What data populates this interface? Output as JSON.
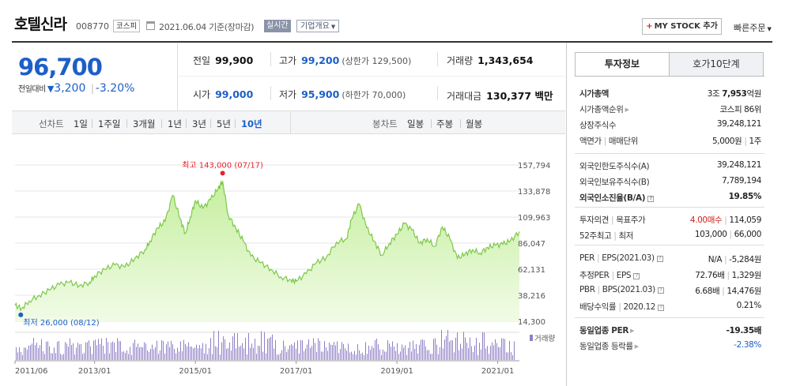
{
  "header": {
    "name": "호텔신라",
    "code": "008770",
    "market": "코스피",
    "date_text": "2021.06.04 기준(장마감)",
    "realtime": "실시간",
    "company_info": "기업개요",
    "mystock_plus": "+",
    "mystock_label": "MY STOCK 추가",
    "quick_order": "빠른주문"
  },
  "price": {
    "current": "96,700",
    "change_label": "전일대비",
    "change_arrow": "▼",
    "change": "3,200",
    "sep": "|",
    "change_pct": "-3.20%"
  },
  "quote": {
    "prev_close_label": "전일",
    "prev_close": "99,900",
    "high_label": "고가",
    "high": "99,200",
    "upper_limit": "(상한가 129,500)",
    "volume_label": "거래량",
    "volume": "1,343,654",
    "open_label": "시가",
    "open": "99,000",
    "low_label": "저가",
    "low": "95,900",
    "lower_limit": "(하한가 70,000)",
    "amount_label": "거래대금",
    "amount": "130,377 백만"
  },
  "tabs": {
    "line_label": "선차트",
    "line_items": [
      "1일",
      "1주일",
      "3개월",
      "1년",
      "3년",
      "5년",
      "10년"
    ],
    "active": "10년",
    "candle_label": "봉차트",
    "candle_items": [
      "일봉",
      "주봉",
      "월봉"
    ]
  },
  "chart_data": {
    "type": "area",
    "period": "10년",
    "y_ticks": [
      "157,794",
      "133,878",
      "109,963",
      "86,047",
      "62,131",
      "38,216",
      "14,300"
    ],
    "ylim": [
      14300,
      157794
    ],
    "x_ticks": [
      "2011/06",
      "2013/01",
      "2015/01",
      "2017/01",
      "2019/01",
      "2021/01"
    ],
    "x_tick_years": [
      2011.42,
      2013.0,
      2015.0,
      2017.0,
      2019.0,
      2021.0
    ],
    "x_range": [
      2011.42,
      2021.43
    ],
    "max_label": "최고 143,000 (07/17)",
    "max_point": {
      "year": 2015.54,
      "value": 143000
    },
    "min_label": "최저 26,000 (08/12)",
    "min_point": {
      "year": 2011.55,
      "value": 26000
    },
    "volume_label": "거래량",
    "series": [
      {
        "x": [
          2011.42,
          2011.55,
          2011.7,
          2011.9,
          2012.1,
          2012.3,
          2012.5,
          2012.7,
          2012.9,
          2013.0,
          2013.2,
          2013.4,
          2013.6,
          2013.8,
          2014.0,
          2014.1,
          2014.25,
          2014.4,
          2014.55,
          2014.7,
          2014.8,
          2014.9,
          2015.0,
          2015.15,
          2015.3,
          2015.45,
          2015.54,
          2015.65,
          2015.8,
          2015.95,
          2016.1,
          2016.3,
          2016.5,
          2016.7,
          2016.9,
          2017.0,
          2017.2,
          2017.4,
          2017.6,
          2017.8,
          2018.0,
          2018.1,
          2018.25,
          2018.4,
          2018.55,
          2018.7,
          2018.85,
          2019.0,
          2019.15,
          2019.3,
          2019.45,
          2019.6,
          2019.75,
          2019.9,
          2020.05,
          2020.2,
          2020.35,
          2020.5,
          2020.65,
          2020.8,
          2020.95,
          2021.1,
          2021.25,
          2021.43
        ],
        "values": [
          29000,
          26000,
          33000,
          38000,
          43000,
          48000,
          50000,
          47000,
          50000,
          56000,
          62000,
          66000,
          64000,
          72000,
          80000,
          88000,
          100000,
          106000,
          130000,
          108000,
          95000,
          110000,
          125000,
          118000,
          126000,
          136000,
          143000,
          112000,
          100000,
          88000,
          74000,
          68000,
          62000,
          55000,
          52000,
          51000,
          58000,
          68000,
          73000,
          87000,
          90000,
          108000,
          122000,
          100000,
          88000,
          75000,
          86000,
          94000,
          104000,
          98000,
          86000,
          90000,
          83000,
          101000,
          90000,
          72000,
          76000,
          80000,
          77000,
          82000,
          84000,
          85000,
          88000,
          96700
        ]
      }
    ]
  },
  "invest": {
    "tab_active": "투자정보",
    "tab_inactive": "호가10단계",
    "rows": {
      "mcap": {
        "k": "시가총액",
        "v_a": "3조 ",
        "v_b": "7,953",
        "v_c": "억원"
      },
      "mcap_rank": {
        "k": "시가총액순위",
        "v": "코스피 86위"
      },
      "shares": {
        "k": "상장주식수",
        "v": "39,248,121"
      },
      "face": {
        "k1": "액면가",
        "k2": "매매단위",
        "v1": "5,000원",
        "v2": "1주"
      },
      "foreign_limit": {
        "k": "외국인한도주식수(A)",
        "v": "39,248,121"
      },
      "foreign_hold": {
        "k": "외국인보유주식수(B)",
        "v": "7,789,194"
      },
      "foreign_ratio": {
        "k": "외국인소진율(B/A)",
        "v": "19.85%"
      },
      "opinion": {
        "k1": "투자의견",
        "k2": "목표주가",
        "v1": "4.00매수",
        "v2": "114,059"
      },
      "week52": {
        "k1": "52주최고",
        "k2": "최저",
        "v1": "103,000",
        "v2": "66,000"
      },
      "per": {
        "k1": "PER",
        "k2": "EPS(2021.03)",
        "v1": "N/A",
        "v2": "-5,284원"
      },
      "est_per": {
        "k1": "추정PER",
        "k2": "EPS",
        "v1": "72.76배",
        "v2": "1,329원"
      },
      "pbr": {
        "k1": "PBR",
        "k2": "BPS(2021.03)",
        "v1": "6.68배",
        "v2": "14,476원"
      },
      "dividend": {
        "k1": "배당수익률",
        "k2": "2020.12",
        "v": "0.21%"
      },
      "industry_per": {
        "k": "동일업종 PER",
        "v": "-19.35배"
      },
      "industry_rate": {
        "k": "동일업종 등락률",
        "v": "-2.38%"
      }
    }
  }
}
